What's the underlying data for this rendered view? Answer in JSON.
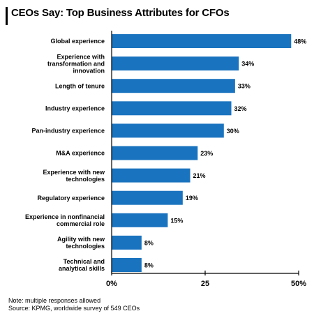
{
  "title": "CEOs Say: Top Business Attributes for CFOs",
  "notes": [
    "Note: multiple responses allowed",
    "Source: KPMG, worldwide survey of 549 CEOs"
  ],
  "colors": {
    "bar": "#1a73bf",
    "axis": "#000000"
  },
  "chart_data": {
    "type": "bar",
    "orientation": "horizontal",
    "categories": [
      [
        "Global experience"
      ],
      [
        "Experience with",
        "transformation and",
        "innovation"
      ],
      [
        "Length of tenure"
      ],
      [
        "Industry experience"
      ],
      [
        "Pan-industry experience"
      ],
      [
        "M&A experience"
      ],
      [
        "Experience with new",
        "technologies"
      ],
      [
        "Regulatory experience"
      ],
      [
        "Experience in nonfinancial",
        "commercial role"
      ],
      [
        "Agility with new",
        "technologies"
      ],
      [
        "Technical and",
        "analytical skills"
      ]
    ],
    "values": [
      48,
      34,
      33,
      32,
      30,
      23,
      21,
      19,
      15,
      8,
      8
    ],
    "value_labels": [
      "48%",
      "34%",
      "33%",
      "32%",
      "30%",
      "23%",
      "21%",
      "19%",
      "15%",
      "8%",
      "8%"
    ],
    "xlim": [
      0,
      50
    ],
    "xticks": [
      0,
      25,
      50
    ],
    "xtick_labels": [
      "0%",
      "25",
      "50%"
    ],
    "grid": false,
    "legend": "none"
  }
}
